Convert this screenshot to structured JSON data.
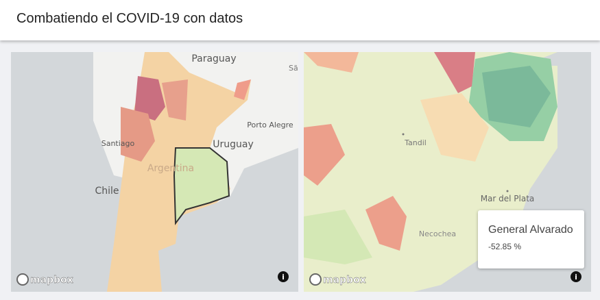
{
  "header": {
    "title": "Combatiendo el COVID-19 con datos"
  },
  "maps": [
    {
      "labels": [
        "Paraguay",
        "Sã",
        "Porto Alegre",
        "Santiago",
        "Uruguay",
        "Argentina",
        "Chile"
      ],
      "logo": "mapbox"
    },
    {
      "labels": [
        "Tandil",
        "Mar del Plata",
        "Necochea"
      ],
      "logo": "mapbox",
      "tooltip": {
        "title": "General Alvarado",
        "value": "-52.85 %"
      }
    }
  ]
}
